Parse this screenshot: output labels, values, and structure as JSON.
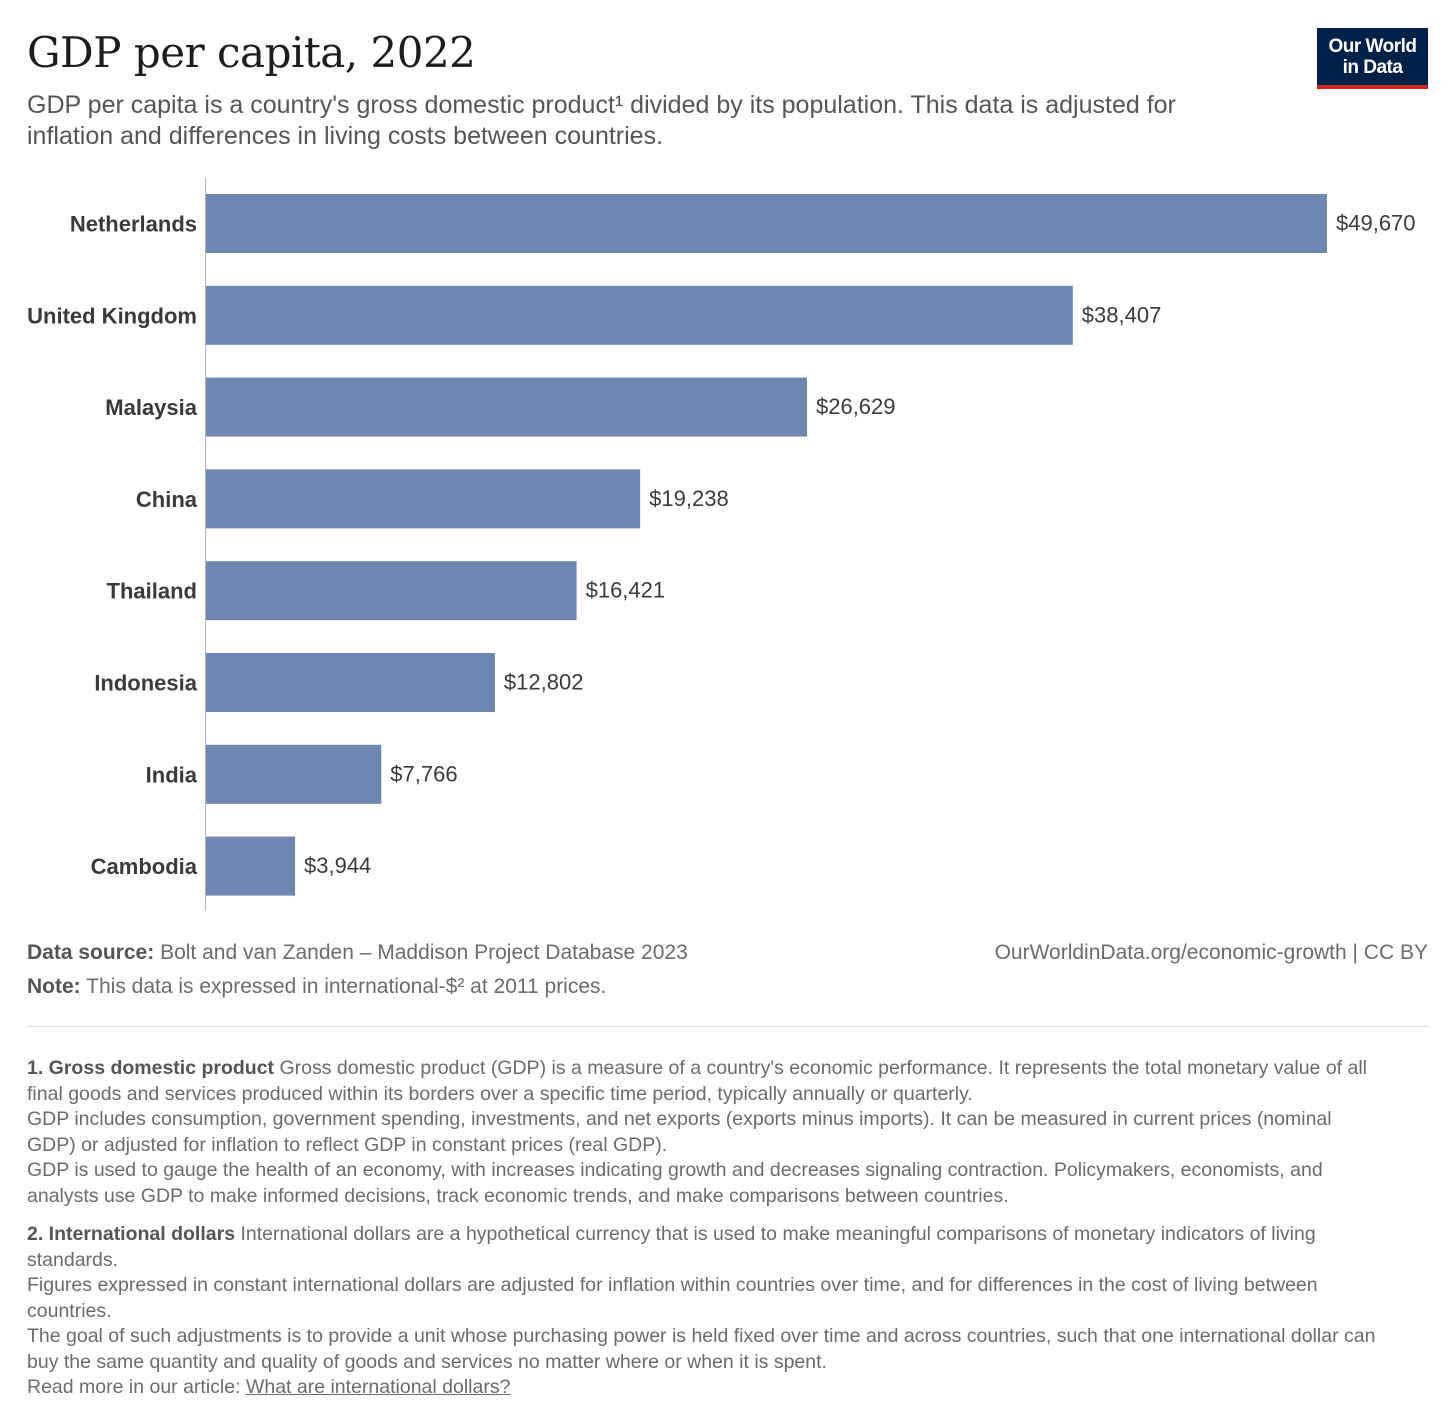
{
  "header": {
    "title": "GDP per capita, 2022",
    "subtitle": "GDP per capita is a country's gross domestic product¹ divided by its population. This data is adjusted for inflation and differences in living costs between countries.",
    "logo_line1": "Our World",
    "logo_line2": "in Data"
  },
  "chart_data": {
    "type": "bar",
    "orientation": "horizontal",
    "categories": [
      "Netherlands",
      "United Kingdom",
      "Malaysia",
      "China",
      "Thailand",
      "Indonesia",
      "India",
      "Cambodia"
    ],
    "values": [
      49670,
      38407,
      26629,
      19238,
      16421,
      12802,
      7766,
      3944
    ],
    "value_labels": [
      "$49,670",
      "$38,407",
      "$26,629",
      "$19,238",
      "$16,421",
      "$12,802",
      "$7,766",
      "$3,944"
    ],
    "bar_color": "#6f87b0",
    "xlim": [
      0,
      49670
    ]
  },
  "footer": {
    "source_label": "Data source:",
    "source_text": "Bolt and van Zanden – Maddison Project Database 2023",
    "note_label": "Note:",
    "note_text": "This data is expressed in international-$² at 2011 prices.",
    "credit": "OurWorldinData.org/economic-growth | CC BY"
  },
  "footnotes": {
    "fn1_title": "1. Gross domestic product",
    "fn1_p1": "Gross domestic product (GDP) is a measure of a country's economic performance. It represents the total monetary value of all final goods and services produced within its borders over a specific time period, typically annually or quarterly.",
    "fn1_p2": "GDP includes consumption, government spending, investments, and net exports (exports minus imports). It can be measured in current prices (nominal GDP) or adjusted for inflation to reflect GDP in constant prices (real GDP).",
    "fn1_p3": "GDP is used to gauge the health of an economy, with increases indicating growth and decreases signaling contraction. Policymakers, economists, and analysts use GDP to make informed decisions, track economic trends, and make comparisons between countries.",
    "fn2_title": "2. International dollars",
    "fn2_p1": "International dollars are a hypothetical currency that is used to make meaningful comparisons of monetary indicators of living standards.",
    "fn2_p2": "Figures expressed in constant international dollars are adjusted for inflation within countries over time, and for differences in the cost of living between countries.",
    "fn2_p3": "The goal of such adjustments is to provide a unit whose purchasing power is held fixed over time and across countries, such that one international dollar can buy the same quantity and quality of goods and services no matter where or when it is spent.",
    "fn2_readmore": "Read more in our article:",
    "fn2_link": "What are international dollars?"
  }
}
